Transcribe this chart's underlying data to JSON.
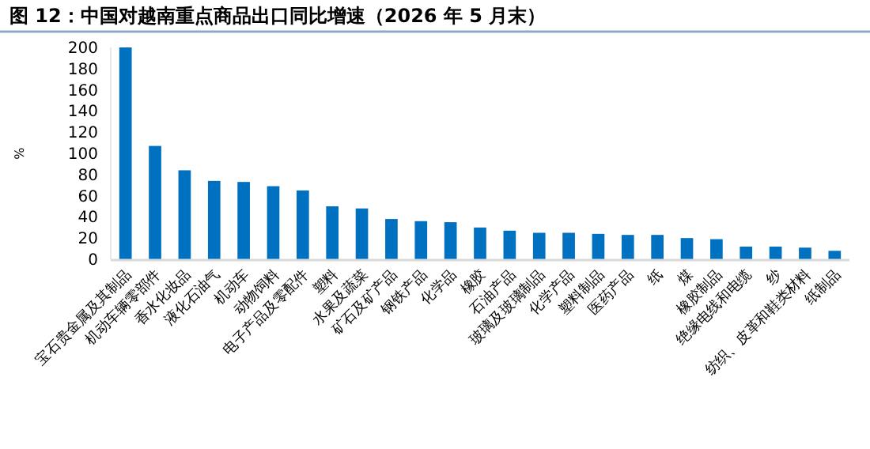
{
  "chart_data": {
    "type": "bar",
    "title": "图 12：中国对越南重点商品出口同比增速（2026 年 5 月末）",
    "ylabel": "%",
    "categories": [
      "宝石贵金属及其制品",
      "机动车辆零部件",
      "香水化妆品",
      "液化石油气",
      "机动车",
      "动物饲料",
      "电子产品及零配件",
      "塑料",
      "水果及蔬菜",
      "矿石及矿产品",
      "钢铁产品",
      "化学品",
      "橡胶",
      "石油产品",
      "玻璃及玻璃制品",
      "化学产品",
      "塑料制品",
      "医药产品",
      "纸",
      "煤",
      "橡胶制品",
      "绝缘电线和电缆",
      "纱",
      "纺织、皮革和鞋类材料",
      "纸制品"
    ],
    "values": [
      200,
      107,
      84,
      74,
      73,
      69,
      65,
      50,
      48,
      38,
      36,
      35,
      30,
      27,
      25,
      25,
      24,
      23,
      23,
      20,
      19,
      12,
      12,
      11,
      8
    ],
    "color": "#0070c0",
    "ylim": [
      0,
      200
    ],
    "yticks": [
      0,
      20,
      40,
      60,
      80,
      100,
      120,
      140,
      160,
      180,
      200
    ],
    "grid": false
  }
}
